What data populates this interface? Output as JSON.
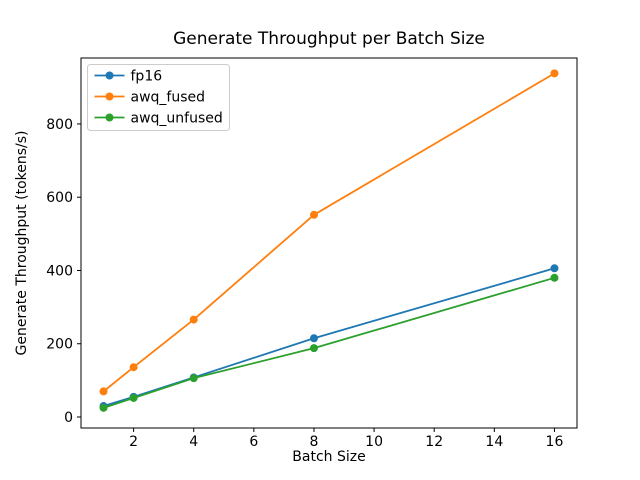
{
  "chart_data": {
    "type": "line",
    "title": "Generate Throughput per Batch Size",
    "xlabel": "Batch Size",
    "ylabel": "Generate Throughput (tokens/s)",
    "x": [
      1,
      2,
      4,
      8,
      16
    ],
    "series": [
      {
        "name": "fp16",
        "color": "#1f77b4",
        "values": [
          30,
          55,
          108,
          215,
          406
        ]
      },
      {
        "name": "awq_fused",
        "color": "#ff7f0e",
        "values": [
          70,
          136,
          266,
          552,
          938
        ]
      },
      {
        "name": "awq_unfused",
        "color": "#2ca02c",
        "values": [
          25,
          52,
          106,
          188,
          380
        ]
      }
    ],
    "xlim": [
      0.25,
      16.75
    ],
    "ylim": [
      -30,
      980
    ],
    "xticks": [
      2,
      4,
      6,
      8,
      10,
      12,
      14,
      16
    ],
    "yticks": [
      0,
      200,
      400,
      600,
      800
    ],
    "legend_position": "upper left",
    "grid": false,
    "frame_color": "#000000",
    "legend_edge_color": "#cccccc",
    "background_color": "#ffffff"
  }
}
